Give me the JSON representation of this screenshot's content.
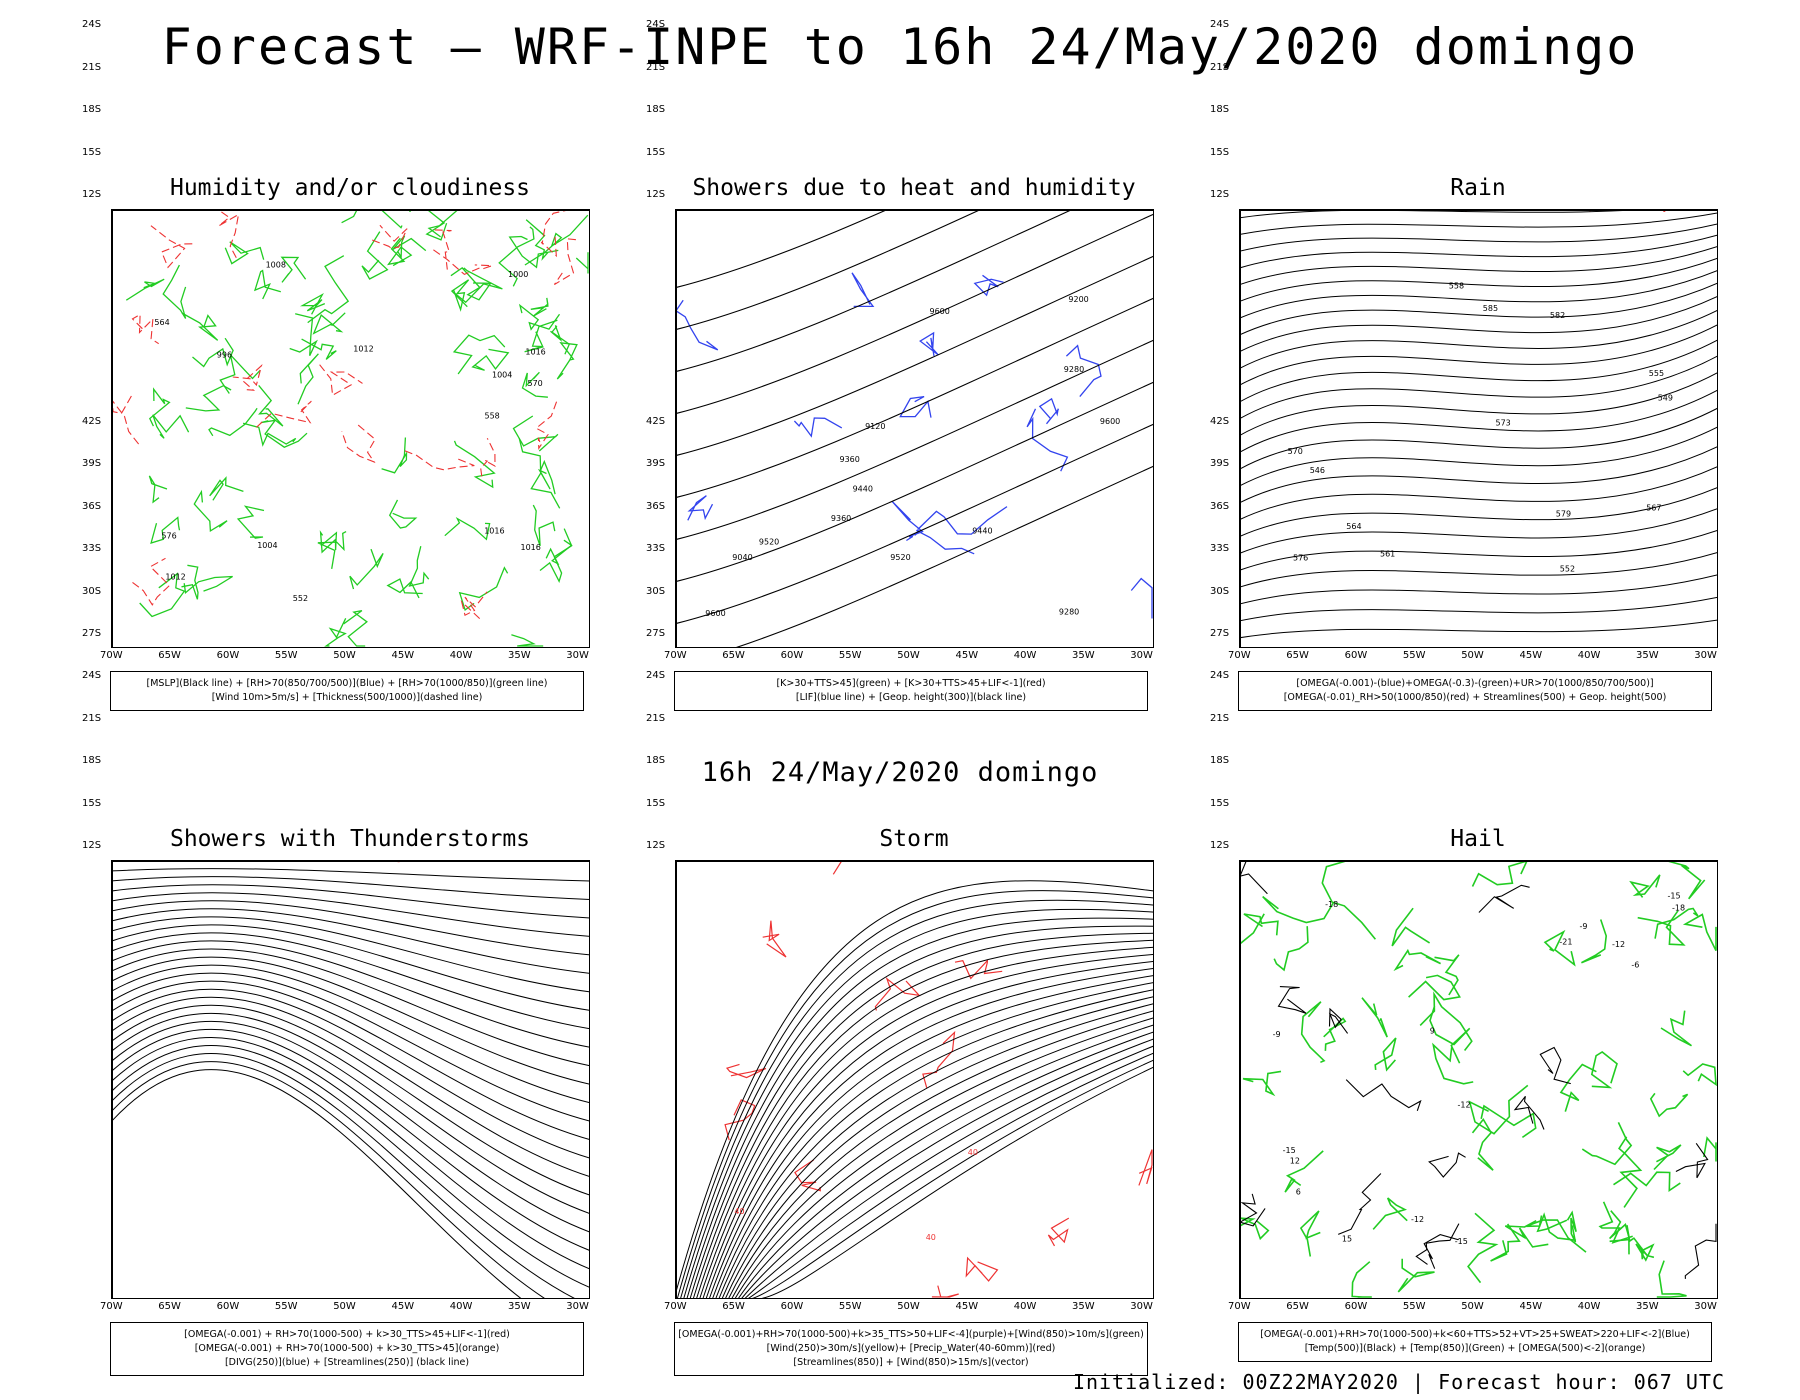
{
  "header": {
    "title": "Forecast — WRF-INPE to 16h 24/May/2020 domingo",
    "subtitle": "16h 24/May/2020 domingo",
    "footer": "Initialized: 00Z22MAY2020 | Forecast hour: 067 UTC"
  },
  "axes": {
    "lat_labels": [
      "12S",
      "15S",
      "18S",
      "21S",
      "24S",
      "27S",
      "30S",
      "33S",
      "36S",
      "39S",
      "42S"
    ],
    "lon_labels": [
      "70W",
      "65W",
      "60W",
      "55W",
      "50W",
      "45W",
      "40W",
      "35W",
      "30W"
    ]
  },
  "panels": [
    {
      "id": "humidity",
      "title": "Humidity and/or cloudiness",
      "legend": [
        "[MSLP](Black line) + [RH>70(850/700/500)](Blue) + [RH>70(1000/850)](green line)",
        "[Wind 10m>5m/s] + [Thickness(500/1000)](dashed line)"
      ],
      "contour_labels": [
        "1016",
        "1016",
        "1016",
        "1012",
        "1012",
        "1008",
        "1004",
        "1004",
        "1000",
        "996",
        "570",
        "564",
        "558",
        "552",
        "576"
      ]
    },
    {
      "id": "showers-heat",
      "title": "Showers due to heat and humidity",
      "legend": [
        "[K>30+TTS>45](green) + [K>30+TTS>45+LIF<-1](red)",
        "[LIF](blue line) + [Geop. height(300)](black line)"
      ],
      "contour_labels": [
        "9600",
        "9600",
        "9520",
        "9440",
        "9360",
        "9280",
        "9200",
        "9120",
        "9040",
        "9600",
        "9520",
        "9440",
        "9360",
        "9280"
      ]
    },
    {
      "id": "rain",
      "title": "Rain",
      "legend": [
        "[OMEGA(-0.001)-(blue)+OMEGA(-0.3)-(green)+UR>70(1000/850/700/500)]",
        "[OMEGA(-0.01)_RH>50(1000/850)(red) + Streamlines(500) + Geop. height(500)"
      ],
      "contour_labels": [
        "585",
        "582",
        "579",
        "576",
        "573",
        "570",
        "567",
        "564",
        "561",
        "558",
        "555",
        "552",
        "549",
        "546"
      ]
    },
    {
      "id": "thunderstorms",
      "title": "Showers with Thunderstorms",
      "legend": [
        "[OMEGA(-0.001) + RH>70(1000-500) + k>30_TTS>45+LIF<-1](red)",
        "[OMEGA(-0.001) + RH>70(1000-500) + k>30_TTS>45](orange)",
        "[DIVG(250)](blue) + [Streamlines(250)] (black line)"
      ],
      "contour_labels": []
    },
    {
      "id": "storm",
      "title": "Storm",
      "legend": [
        "[OMEGA(-0.001)+RH>70(1000-500)+k>35_TTS>50+LIF<-4](purple)+[Wind(850)>10m/s](green)",
        "[Wind(250)>30m/s](yellow)+ [Precip_Water(40-60mm)](red)",
        "[Streamlines(850)] + [Wind(850)>15m/s](vector)"
      ],
      "contour_labels": [
        "40",
        "40",
        "40"
      ]
    },
    {
      "id": "hail",
      "title": "Hail",
      "legend": [
        "[OMEGA(-0.001)+RH>70(1000-500)+k<60+TTS>52+VT>25+SWEAT>220+LIF<-2](Blue)",
        "[Temp(500)](Black) + [Temp(850)](Green) + [OMEGA(500)<-2](orange)"
      ],
      "contour_labels": [
        "-9",
        "-12",
        "-15",
        "-12",
        "-15",
        "-18",
        "-21",
        "-6",
        "-9",
        "-12",
        "-15",
        "-18",
        "15",
        "12",
        "9",
        "6"
      ]
    }
  ],
  "colors": {
    "coast": "#000000",
    "green": "#22cc22",
    "blue": "#3344ee",
    "lightblue": "#b8b8f0",
    "red": "#ee3333",
    "orange": "#ee8822",
    "yellow": "#e4dc3a",
    "darkgreen": "#1e3d3a",
    "brightgreen": "#22bb22"
  }
}
